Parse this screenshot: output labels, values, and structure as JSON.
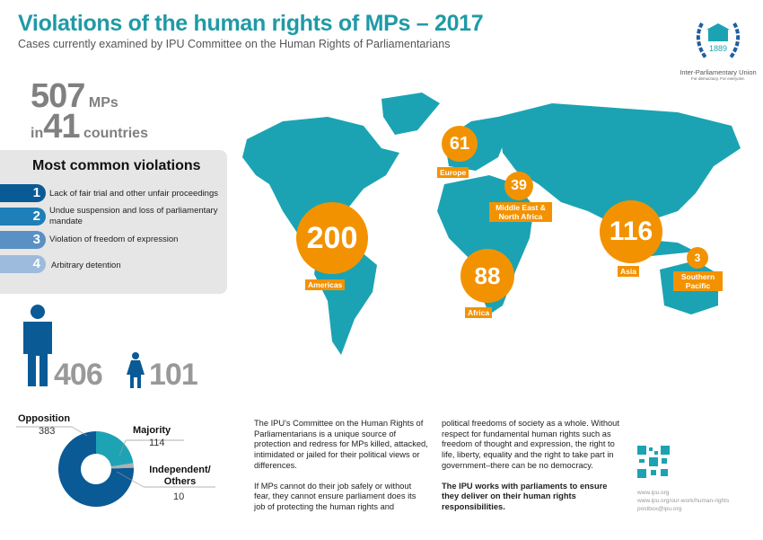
{
  "header": {
    "title": "Violations of the human rights of MPs – 2017",
    "subtitle": "Cases currently examined by IPU Committee on the Human Rights of Parliamentarians"
  },
  "logo": {
    "year": "1889",
    "org": "Inter-Parliamentary Union",
    "tagline": "For democracy. For everyone."
  },
  "totals": {
    "mps": "507",
    "mps_unit": "MPs",
    "in": "in",
    "countries": "41",
    "countries_unit": "countries"
  },
  "violations": {
    "title": "Most common violations",
    "items": [
      {
        "rank": "1",
        "label": "Lack of fair trial and other unfair proceedings",
        "color": "#0a5a96"
      },
      {
        "rank": "2",
        "label": "Undue suspension and loss of parliamentary mandate",
        "color": "#1f7fb8"
      },
      {
        "rank": "3",
        "label": "Violation of freedom of expression",
        "color": "#5a91c4"
      },
      {
        "rank": "4",
        "label": "Arbitrary detention",
        "color": "#9dbbdc"
      }
    ]
  },
  "gender": {
    "men": "406",
    "women": "101"
  },
  "regions": [
    {
      "name": "Americas",
      "value": "200"
    },
    {
      "name": "Europe",
      "value": "61"
    },
    {
      "name": "Middle East & North Africa",
      "value": "39"
    },
    {
      "name": "Africa",
      "value": "88"
    },
    {
      "name": "Asia",
      "value": "116"
    },
    {
      "name": "Southern Pacific",
      "value": "3"
    }
  ],
  "chart_data": {
    "type": "pie",
    "donut": true,
    "categories": [
      "Majority",
      "Independent/ Others",
      "Opposition"
    ],
    "values": [
      114,
      10,
      383
    ],
    "colors": [
      "#1ea3b5",
      "#b0b0b0",
      "#0a5a96"
    ]
  },
  "body": {
    "col1_p1": "The IPU's Committee on the Human Rights of Parliamentarians is a unique source of protection and redress for MPs killed, attacked, intimidated or jailed for their political views or differences.",
    "col1_p2": "If MPs cannot do their job safely or without fear, they cannot ensure parliament does its job of protecting the human rights and",
    "col2_p1": "political freedoms of society as a whole. Without respect for fundamental human rights such as freedom of thought and expression, the right to life, liberty, equality and the right to take part in government–there can be no democracy.",
    "col2_p2": "The IPU works with parliaments to ensure they deliver on their human rights responsibilities."
  },
  "links": [
    "www.ipu.org",
    "www.ipu.org/our-work/human-rights",
    "postbox@ipu.org"
  ],
  "colors": {
    "teal": "#1f9aa6",
    "map": "#1ba3b3",
    "orange": "#f39200",
    "blue": "#0a5a96"
  }
}
